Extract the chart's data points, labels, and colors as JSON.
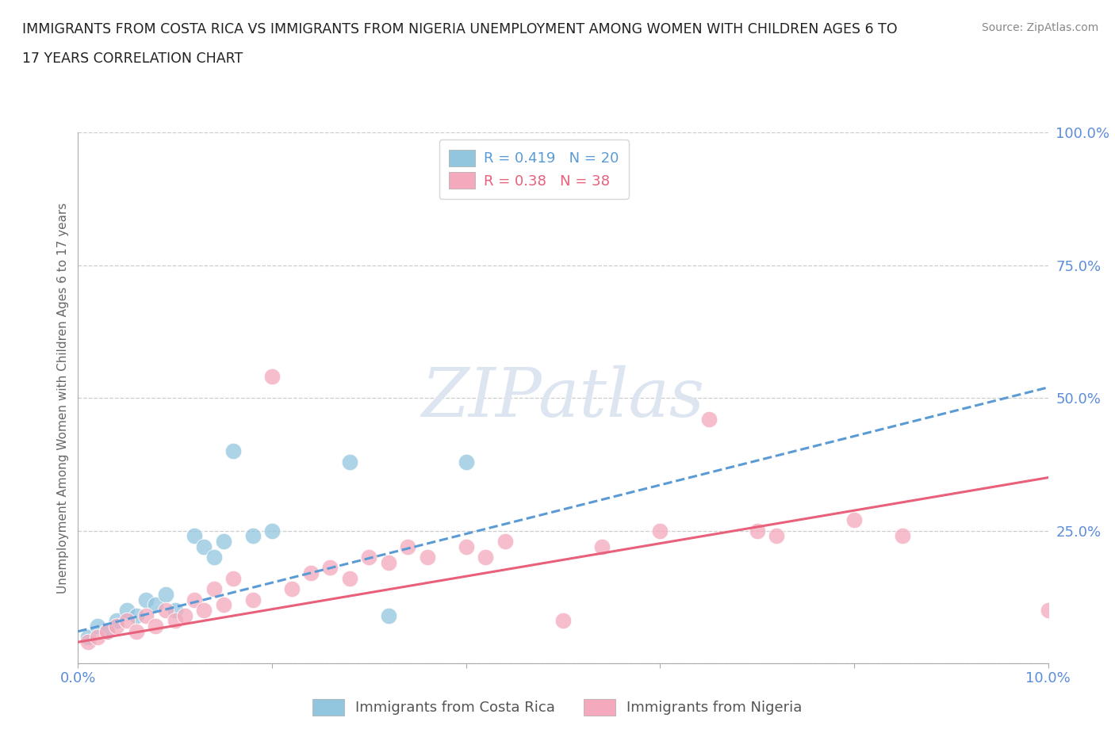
{
  "title_line1": "IMMIGRANTS FROM COSTA RICA VS IMMIGRANTS FROM NIGERIA UNEMPLOYMENT AMONG WOMEN WITH CHILDREN AGES 6 TO",
  "title_line2": "17 YEARS CORRELATION CHART",
  "source": "Source: ZipAtlas.com",
  "ylabel": "Unemployment Among Women with Children Ages 6 to 17 years",
  "xlim": [
    0,
    0.1
  ],
  "ylim": [
    0,
    1.0
  ],
  "xtick_positions": [
    0.0,
    0.02,
    0.04,
    0.06,
    0.08,
    0.1
  ],
  "xticklabels": [
    "0.0%",
    "",
    "",
    "",
    "",
    "10.0%"
  ],
  "yticks_right": [
    0.0,
    0.25,
    0.5,
    0.75,
    1.0
  ],
  "ytick_right_labels": [
    "",
    "25.0%",
    "50.0%",
    "75.0%",
    "100.0%"
  ],
  "costa_rica_R": 0.419,
  "costa_rica_N": 20,
  "nigeria_R": 0.38,
  "nigeria_N": 38,
  "costa_rica_color": "#92c5de",
  "nigeria_color": "#f4a9bc",
  "costa_rica_line_color": "#5b9bd5",
  "nigeria_line_color": "#e8607a",
  "costa_rica_legend_color": "#5b9bd5",
  "nigeria_legend_color": "#e8607a",
  "background_color": "#ffffff",
  "watermark": "ZIPatlas",
  "watermark_color": "#dde5f0",
  "grid_color": "#cccccc",
  "title_color": "#222222",
  "axis_label_color": "#5b8dd9",
  "ylabel_color": "#666666",
  "source_color": "#888888",
  "bottom_legend_color": "#555555",
  "costa_rica_x": [
    0.001,
    0.002,
    0.003,
    0.004,
    0.005,
    0.006,
    0.007,
    0.008,
    0.009,
    0.01,
    0.012,
    0.013,
    0.014,
    0.015,
    0.016,
    0.018,
    0.02,
    0.028,
    0.032,
    0.04
  ],
  "costa_rica_y": [
    0.05,
    0.07,
    0.06,
    0.08,
    0.1,
    0.09,
    0.12,
    0.11,
    0.13,
    0.1,
    0.24,
    0.22,
    0.2,
    0.23,
    0.4,
    0.24,
    0.25,
    0.38,
    0.09,
    0.38
  ],
  "nigeria_x": [
    0.001,
    0.002,
    0.003,
    0.004,
    0.005,
    0.006,
    0.007,
    0.008,
    0.009,
    0.01,
    0.011,
    0.012,
    0.013,
    0.014,
    0.015,
    0.016,
    0.018,
    0.02,
    0.022,
    0.024,
    0.026,
    0.028,
    0.03,
    0.032,
    0.034,
    0.036,
    0.04,
    0.042,
    0.044,
    0.05,
    0.054,
    0.06,
    0.065,
    0.07,
    0.072,
    0.08,
    0.085,
    0.1
  ],
  "nigeria_y": [
    0.04,
    0.05,
    0.06,
    0.07,
    0.08,
    0.06,
    0.09,
    0.07,
    0.1,
    0.08,
    0.09,
    0.12,
    0.1,
    0.14,
    0.11,
    0.16,
    0.12,
    0.54,
    0.14,
    0.17,
    0.18,
    0.16,
    0.2,
    0.19,
    0.22,
    0.2,
    0.22,
    0.2,
    0.23,
    0.08,
    0.22,
    0.25,
    0.46,
    0.25,
    0.24,
    0.27,
    0.24,
    0.1
  ],
  "cr_line_x0": 0.0,
  "cr_line_x1": 0.1,
  "cr_line_y0": 0.06,
  "cr_line_y1": 0.52,
  "ng_line_x0": 0.0,
  "ng_line_x1": 0.1,
  "ng_line_y0": 0.04,
  "ng_line_y1": 0.35
}
